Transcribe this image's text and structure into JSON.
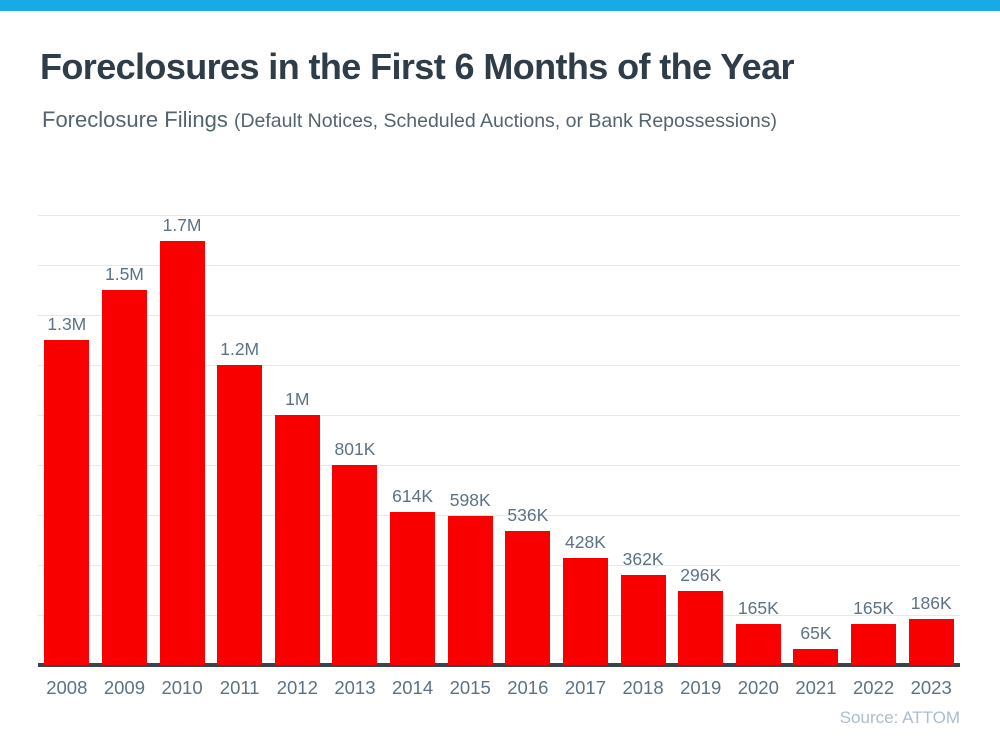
{
  "page": {
    "accent_color": "#19A9E5",
    "title": "Foreclosures in the First 6 Months of the Year",
    "subtitle_main": "Foreclosure Filings ",
    "subtitle_paren": "(Default Notices, Scheduled Auctions, or Bank Repossessions)",
    "source": "Source: ATTOM"
  },
  "chart_data": {
    "type": "bar",
    "title": "Foreclosures in the First 6 Months of the Year",
    "subtitle": "Foreclosure Filings (Default Notices, Scheduled Auctions, or Bank Repossessions)",
    "categories": [
      "2008",
      "2009",
      "2010",
      "2011",
      "2012",
      "2013",
      "2014",
      "2015",
      "2016",
      "2017",
      "2018",
      "2019",
      "2020",
      "2021",
      "2022",
      "2023"
    ],
    "values_thousands": [
      1300,
      1500,
      1700,
      1200,
      1000,
      801,
      614,
      598,
      536,
      428,
      362,
      296,
      165,
      65,
      165,
      186
    ],
    "value_labels": [
      "1.3M",
      "1.5M",
      "1.7M",
      "1.2M",
      "1M",
      "801K",
      "614K",
      "598K",
      "536K",
      "428K",
      "362K",
      "296K",
      "165K",
      "65K",
      "165K",
      "186K"
    ],
    "xlabel": "",
    "ylabel": "",
    "ylim_thousands": [
      0,
      1800
    ],
    "gridline_step_thousands": 200,
    "grid": "horizontal",
    "legend": "none",
    "bar_color": "#F80000",
    "label_color": "#5C7284",
    "axis_color": "#39444E",
    "gridline_color": "#E7E9EA",
    "source": "Source: ATTOM"
  }
}
